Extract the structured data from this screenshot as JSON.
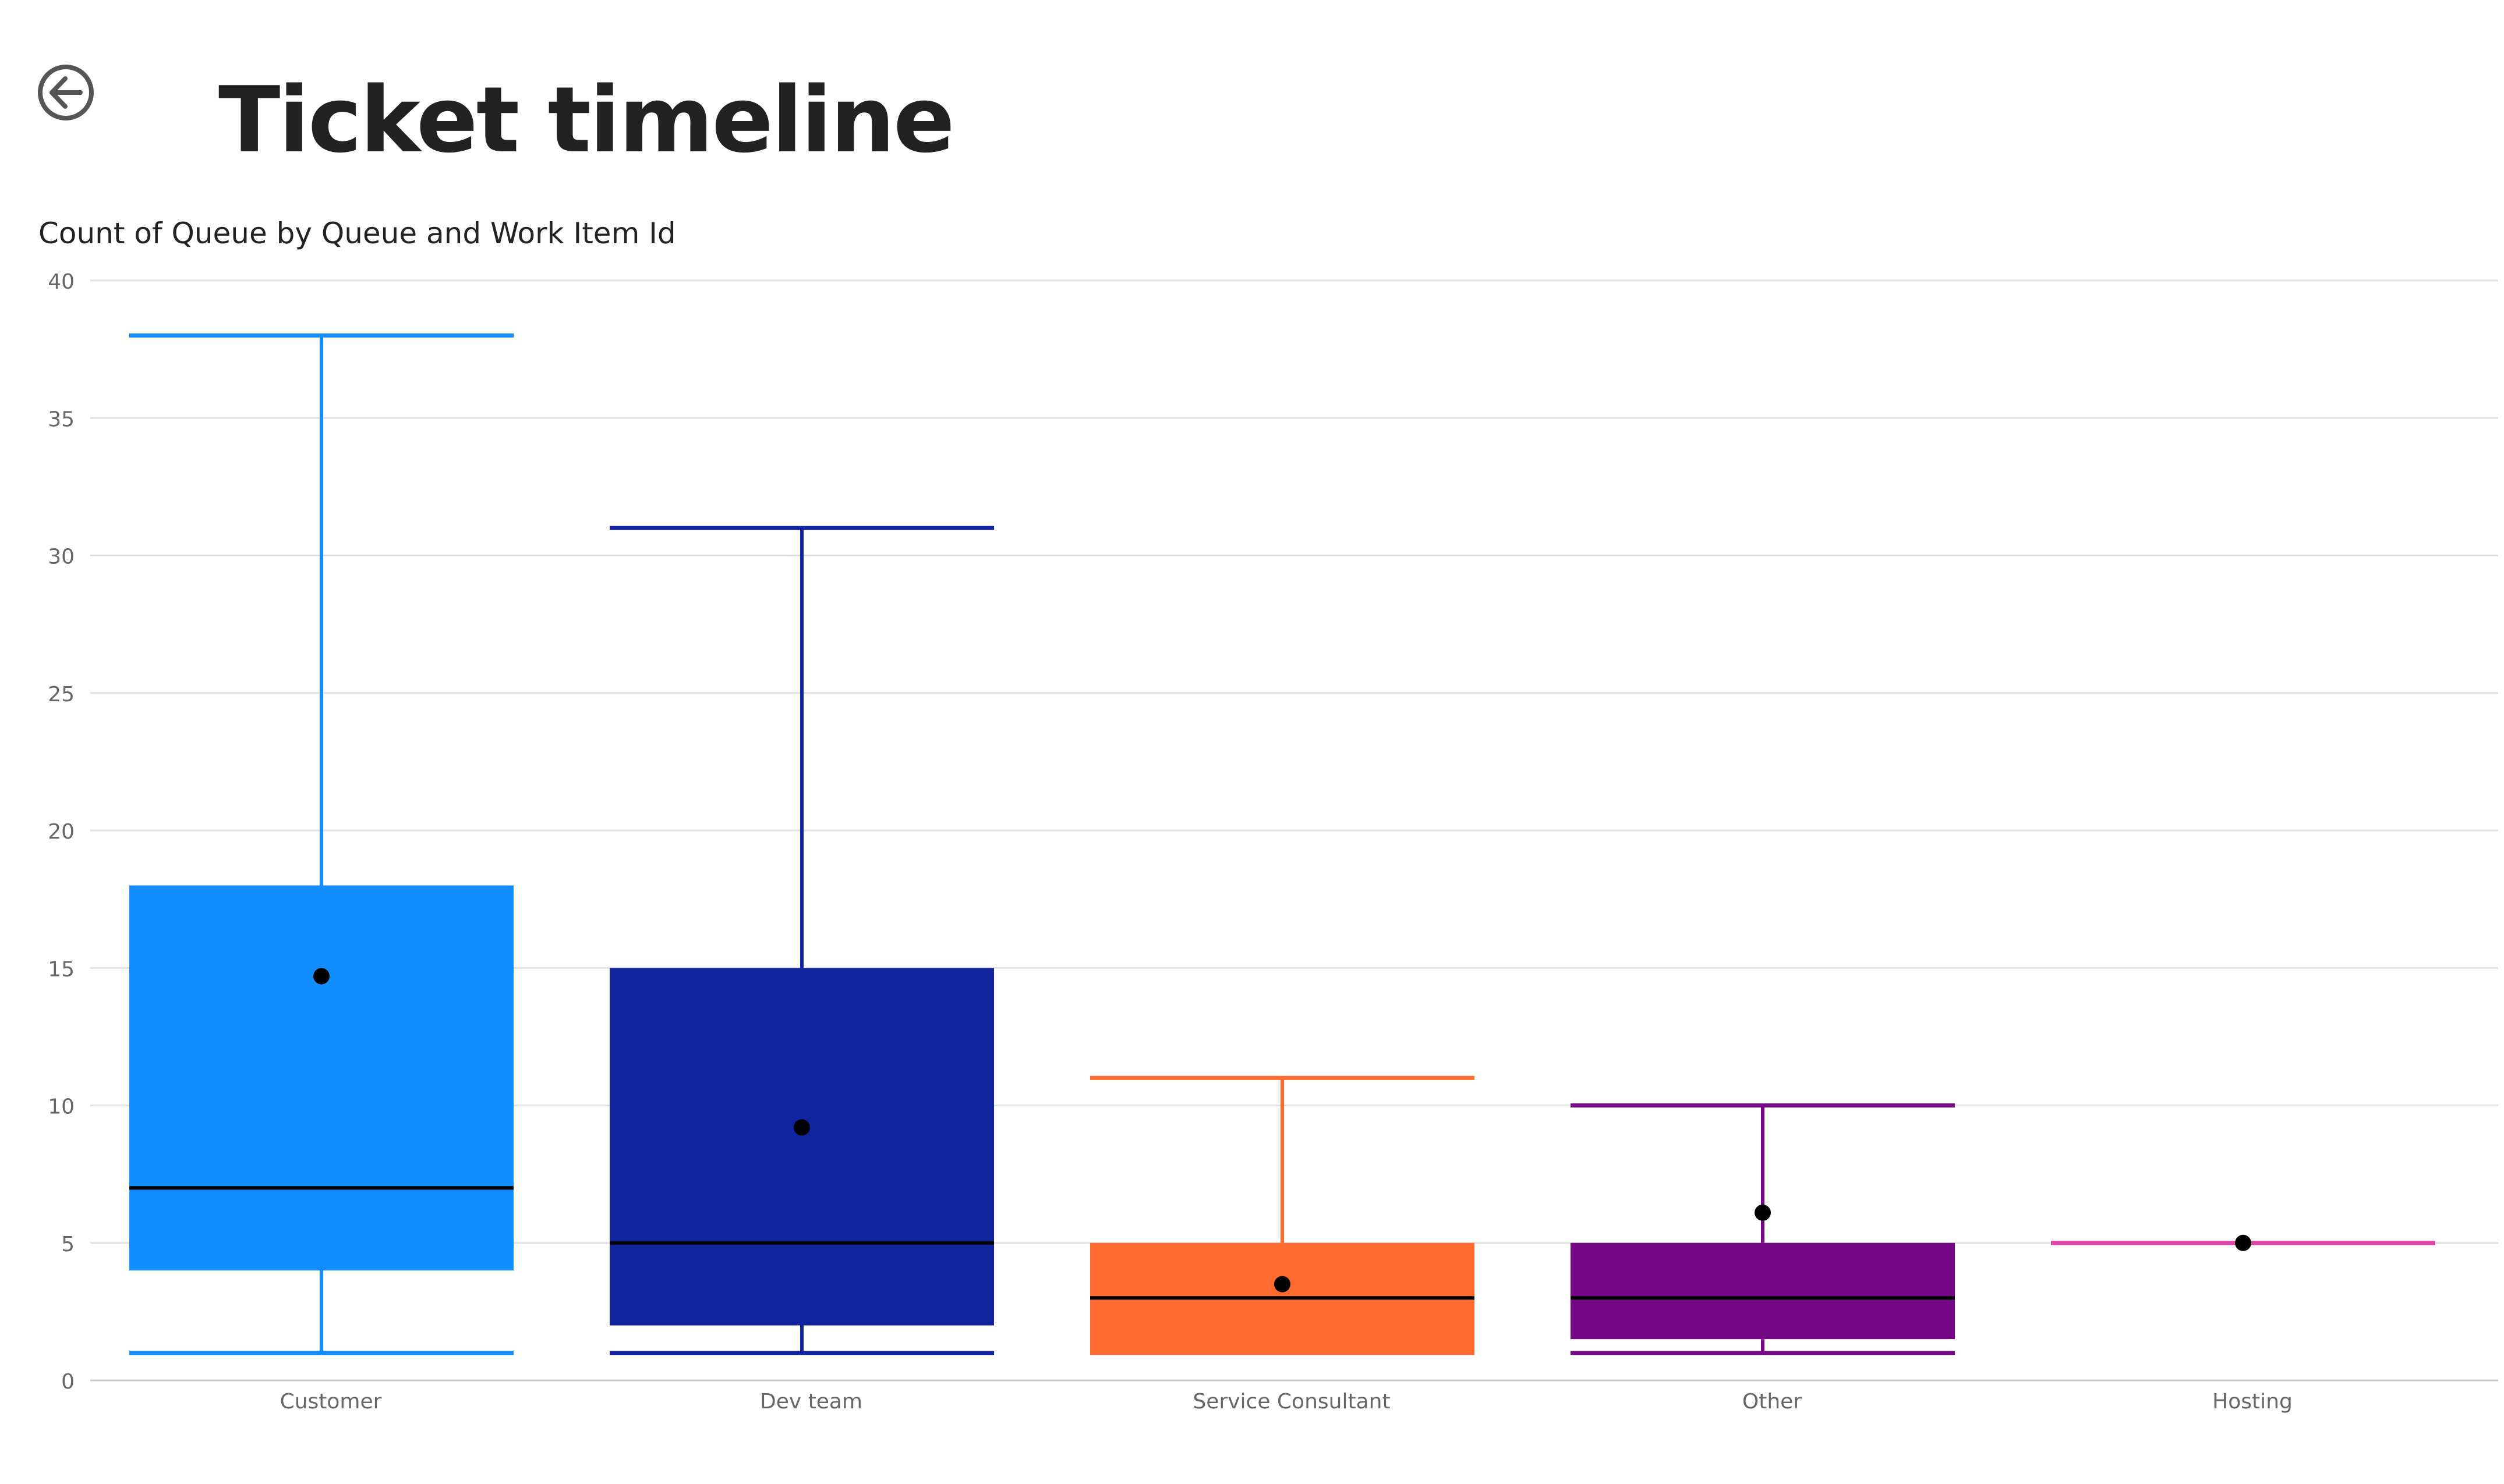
{
  "page": {
    "title": "Ticket timeline",
    "back_icon": "arrow-left-circle-icon"
  },
  "chart_data": {
    "type": "boxplot",
    "title": "Count of Queue by Queue and Work Item Id",
    "xlabel": "",
    "ylabel": "",
    "ylim": [
      0,
      40
    ],
    "yticks": [
      "0",
      "5",
      "10",
      "15",
      "20",
      "25",
      "30",
      "35",
      "40"
    ],
    "categories": [
      "Customer",
      "Dev team",
      "Service Consultant",
      "Other",
      "Hosting"
    ],
    "grid": true,
    "series": [
      {
        "category": "Customer",
        "color": "#118DFF",
        "min": 1,
        "q1": 4,
        "median": 7,
        "q3": 18,
        "max": 38,
        "mean": 14.7
      },
      {
        "category": "Dev team",
        "color": "#12239E",
        "min": 1,
        "q1": 2,
        "median": 5,
        "q3": 15,
        "max": 31,
        "mean": 9.2
      },
      {
        "category": "Service Consultant",
        "color": "#FF6A2F",
        "min": 1,
        "q1": 1,
        "median": 3,
        "q3": 5,
        "max": 11,
        "mean": 3.5
      },
      {
        "category": "Other",
        "color": "#750985",
        "min": 1,
        "q1": 1.5,
        "median": 3,
        "q3": 5,
        "max": 10,
        "mean": 6.1
      },
      {
        "category": "Hosting",
        "color": "#E044A7",
        "min": 5,
        "q1": 5,
        "median": 5,
        "q3": 5,
        "max": 5,
        "mean": 5
      }
    ]
  }
}
